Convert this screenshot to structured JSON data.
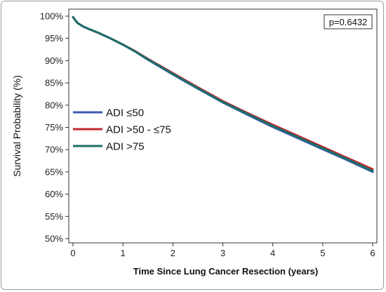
{
  "chart_data": {
    "type": "line",
    "xlabel": "Time Since Lung Cancer Resection (years)",
    "ylabel": "Survival Probability (%)",
    "xlim": [
      0,
      6
    ],
    "ylim": [
      50,
      100
    ],
    "xticks": [
      "0",
      "1",
      "2",
      "3",
      "4",
      "5",
      "6"
    ],
    "yticks": [
      "50%",
      "55%",
      "60%",
      "65%",
      "70%",
      "75%",
      "80%",
      "85%",
      "90%",
      "95%",
      "100%"
    ],
    "grid": false,
    "legend_position": "left-middle",
    "annotation": "p=0.6432",
    "series": [
      {
        "name": "ADI ≤50",
        "color": "#3a5bb0",
        "x": [
          0,
          0.05,
          0.1,
          0.2,
          0.3,
          0.5,
          0.75,
          1.0,
          1.25,
          1.5,
          2.0,
          2.5,
          3.0,
          3.5,
          4.0,
          4.5,
          5.0,
          5.5,
          6.0
        ],
        "y": [
          99.8,
          99.0,
          98.4,
          97.7,
          97.2,
          96.3,
          95.0,
          93.6,
          92.0,
          90.2,
          86.9,
          83.7,
          80.6,
          77.8,
          75.1,
          72.6,
          70.1,
          67.6,
          65.0
        ]
      },
      {
        "name": "ADI >50 - ≤75",
        "color": "#c0282d",
        "x": [
          0,
          0.05,
          0.1,
          0.2,
          0.3,
          0.5,
          0.75,
          1.0,
          1.25,
          1.5,
          2.0,
          2.5,
          3.0,
          3.5,
          4.0,
          4.5,
          5.0,
          5.5,
          6.0
        ],
        "y": [
          99.8,
          99.0,
          98.4,
          97.7,
          97.2,
          96.3,
          95.0,
          93.6,
          92.1,
          90.4,
          87.2,
          84.0,
          80.9,
          78.2,
          75.6,
          73.1,
          70.6,
          68.1,
          65.6
        ]
      },
      {
        "name": "ADI >75",
        "color": "#1b6e6a",
        "x": [
          0,
          0.05,
          0.1,
          0.2,
          0.3,
          0.5,
          0.75,
          1.0,
          1.25,
          1.5,
          2.0,
          2.5,
          3.0,
          3.5,
          4.0,
          4.5,
          5.0,
          5.5,
          6.0
        ],
        "y": [
          99.8,
          99.0,
          98.4,
          97.7,
          97.2,
          96.3,
          95.0,
          93.6,
          92.0,
          90.3,
          87.0,
          83.8,
          80.7,
          78.0,
          75.3,
          72.8,
          70.3,
          67.8,
          65.2
        ]
      }
    ]
  }
}
